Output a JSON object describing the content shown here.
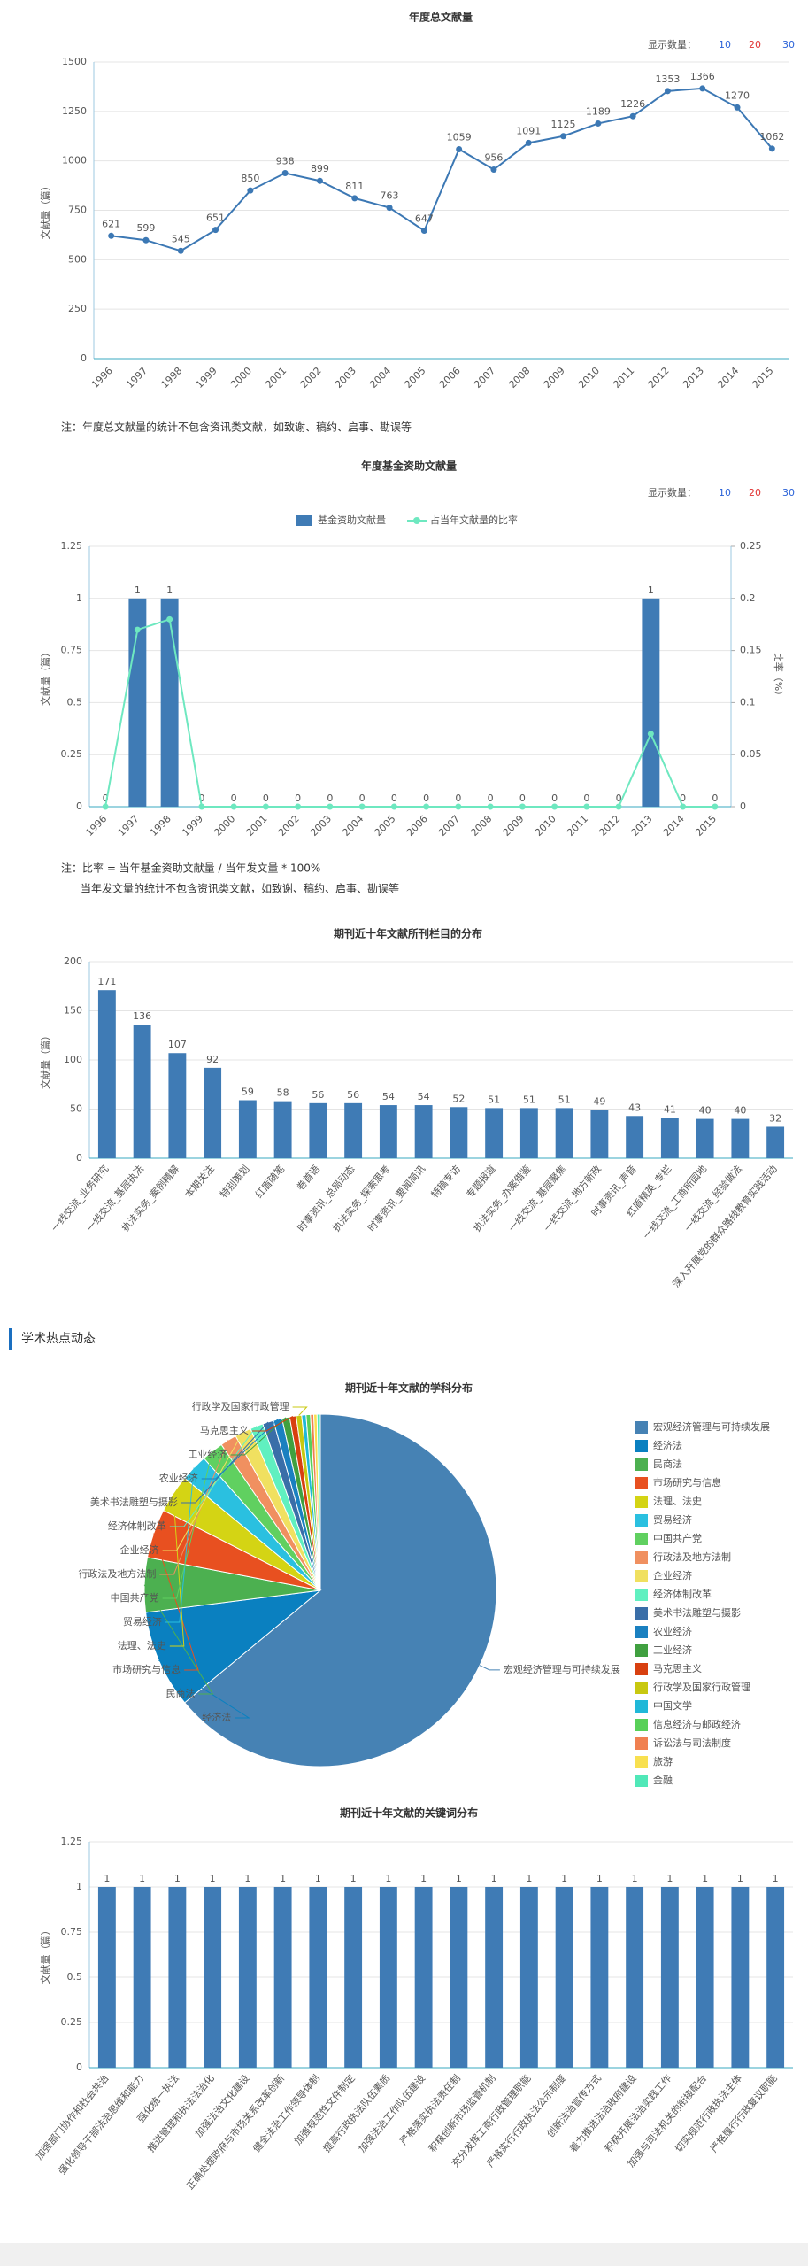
{
  "section": {
    "title": "学术热点动态"
  },
  "chart_data": [
    {
      "type": "line",
      "title": "年度总文献量",
      "y_label": "文献量（篇）",
      "display_count": {
        "label": "显示数量：",
        "options": [
          "10",
          "20",
          "30"
        ]
      },
      "categories": [
        "1996",
        "1997",
        "1998",
        "1999",
        "2000",
        "2001",
        "2002",
        "2003",
        "2004",
        "2005",
        "2006",
        "2007",
        "2008",
        "2009",
        "2010",
        "2011",
        "2012",
        "2013",
        "2014",
        "2015"
      ],
      "values": [
        621,
        599,
        545,
        651,
        850,
        938,
        899,
        811,
        763,
        647,
        1059,
        956,
        1091,
        1125,
        1189,
        1226,
        1353,
        1366,
        1270,
        1062
      ],
      "color": "#3c78b4",
      "ylim": [
        0,
        1500
      ],
      "yticks": [
        0,
        250,
        500,
        750,
        1000,
        1250,
        1500
      ],
      "grid": true,
      "notes": [
        "注：年度总文献量的统计不包含资讯类文献，如致谢、稿约、启事、勘误等"
      ]
    },
    {
      "type": "combo",
      "title": "年度基金资助文献量",
      "y_label": "文献量（篇）",
      "y2_label": "比率（%）",
      "display_count": {
        "label": "显示数量：",
        "options": [
          "10",
          "20",
          "30"
        ]
      },
      "categories": [
        "1996",
        "1997",
        "1998",
        "1999",
        "2000",
        "2001",
        "2002",
        "2003",
        "2004",
        "2005",
        "2006",
        "2007",
        "2008",
        "2009",
        "2010",
        "2011",
        "2012",
        "2013",
        "2014",
        "2015"
      ],
      "series": [
        {
          "name": "基金资助文献量",
          "type": "bar",
          "color": "#3f7bb5",
          "values": [
            0,
            1,
            1,
            0,
            0,
            0,
            0,
            0,
            0,
            0,
            0,
            0,
            0,
            0,
            0,
            0,
            0,
            1,
            0,
            0
          ]
        },
        {
          "name": "占当年文献量的比率",
          "type": "line",
          "axis": "y2",
          "color": "#6ee8c0",
          "values": [
            0,
            0.17,
            0.18,
            0,
            0,
            0,
            0,
            0,
            0,
            0,
            0,
            0,
            0,
            0,
            0,
            0,
            0,
            0.07,
            0,
            0
          ]
        }
      ],
      "ylim": [
        0,
        1.25
      ],
      "yticks": [
        0,
        0.25,
        0.5,
        0.75,
        1,
        1.25
      ],
      "y2lim": [
        0,
        0.25
      ],
      "y2ticks": [
        0,
        0.05,
        0.1,
        0.15,
        0.2,
        0.25
      ],
      "grid": true,
      "notes": [
        "注：比率 = 当年基金资助文献量 / 当年发文量 * 100%",
        "当年发文量的统计不包含资讯类文献，如致谢、稿约、启事、勘误等"
      ]
    },
    {
      "type": "bar",
      "title": "期刊近十年文献所刊栏目的分布",
      "y_label": "文献量（篇）",
      "categories": [
        "一线交流_业务研究",
        "一线交流_基层执法",
        "执法实务_案例精解",
        "本期关注",
        "特别策划",
        "红盾随笔",
        "卷首语",
        "时事资讯_总局动态",
        "执法实务_探索思考",
        "时事资讯_要闻简讯",
        "特稿专访",
        "专题报道",
        "执法实务_办案借鉴",
        "一线交流_基层聚焦",
        "一线交流_地方新政",
        "时事资讯_声音",
        "红盾精英_专栏",
        "一线交流_工商所园地",
        "一线交流_经验做法",
        "深入开展党的群众路线教育实践活动"
      ],
      "values": [
        171,
        136,
        107,
        92,
        59,
        58,
        56,
        56,
        54,
        54,
        52,
        51,
        51,
        51,
        49,
        43,
        41,
        40,
        40,
        32
      ],
      "color": "#3f7bb5",
      "ylim": [
        0,
        200
      ],
      "yticks": [
        0,
        50,
        100,
        150,
        200
      ],
      "grid": true
    },
    {
      "type": "pie",
      "title": "期刊近十年文献的学科分布",
      "categories": [
        "宏观经济管理与可持续发展",
        "经济法",
        "民商法",
        "市场研究与信息",
        "法理、法史",
        "贸易经济",
        "中国共产党",
        "行政法及地方法制",
        "企业经济",
        "经济体制改革",
        "美术书法雕塑与摄影",
        "农业经济",
        "工业经济",
        "马克思主义",
        "行政学及国家行政管理",
        "中国文学",
        "信息经济与邮政经济",
        "诉讼法与司法制度",
        "旅游",
        "金融"
      ],
      "values": [
        64,
        9,
        5,
        4.5,
        3.5,
        2.5,
        2,
        1.5,
        1.5,
        1.2,
        1,
        0.8,
        0.7,
        0.6,
        0.5,
        0.4,
        0.4,
        0.3,
        0.3,
        0.3
      ],
      "colors": [
        "#4682b4",
        "#0a80c0",
        "#4cb050",
        "#e85020",
        "#d4d414",
        "#2ac0e0",
        "#60d060",
        "#f09060",
        "#f0e060",
        "#60f0c0",
        "#3a6ea8",
        "#1a80c0",
        "#40a040",
        "#d84010",
        "#c8c810",
        "#20b8d8",
        "#58d058",
        "#f08050",
        "#f8e050",
        "#50e8b8"
      ]
    },
    {
      "type": "bar",
      "title": "期刊近十年文献的关键词分布",
      "y_label": "文献量（篇）",
      "categories": [
        "加强部门协作和社会共治",
        "强化领导干部法治思维和能力",
        "强化统一执法",
        "推进管理和执法法治化",
        "加强法治文化建设",
        "正确处理政府与市场关系改革创新",
        "健全法治工作领导体制",
        "加强规范性文件制定",
        "提高行政执法队伍素质",
        "加强法治工作队伍建设",
        "严格落实执法责任制",
        "积极创新市场监管机制",
        "充分发挥工商行政管理职能",
        "严格实行行政执法公示制度",
        "创新法治宣传方式",
        "着力推进法治政府建设",
        "积极开展法治实践工作",
        "加强与司法机关的衔接配合",
        "切实规范行政执法主体",
        "严格履行行政复议职能"
      ],
      "values": [
        1,
        1,
        1,
        1,
        1,
        1,
        1,
        1,
        1,
        1,
        1,
        1,
        1,
        1,
        1,
        1,
        1,
        1,
        1,
        1
      ],
      "color": "#3f7bb5",
      "ylim": [
        0,
        1.25
      ],
      "yticks": [
        0,
        0.25,
        0.5,
        0.75,
        1,
        1.25
      ],
      "grid": true
    }
  ]
}
